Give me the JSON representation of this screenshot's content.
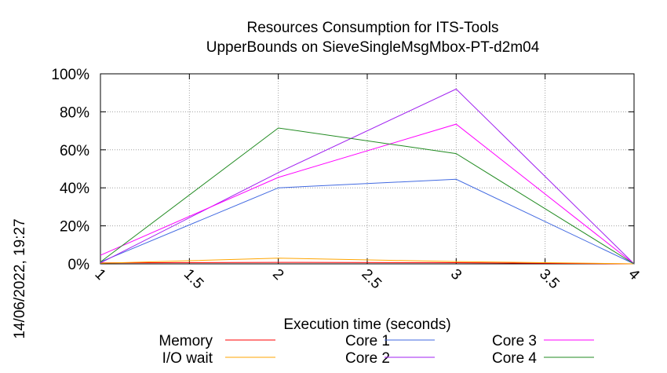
{
  "chart_data": {
    "type": "line",
    "title_line1": "Resources Consumption for ITS-Tools",
    "title_line2": "UpperBounds on SieveSingleMsgMbox-PT-d2m04",
    "xlabel": "Execution time (seconds)",
    "ylabel": "",
    "side_label": "14/06/2022, 19:27",
    "x": [
      1,
      2,
      3,
      4
    ],
    "xlim": [
      1,
      4
    ],
    "ylim": [
      0,
      100
    ],
    "x_ticks": [
      "1",
      "1.5",
      "2",
      "2.5",
      "3",
      "3.5",
      "4"
    ],
    "y_ticks": [
      "0%",
      "20%",
      "40%",
      "60%",
      "80%",
      "100%"
    ],
    "grid": true,
    "legend_position": "bottom",
    "series": [
      {
        "name": "Memory",
        "color": "#ff0000",
        "values": [
          0.5,
          0.8,
          0.6,
          0
        ]
      },
      {
        "name": "I/O wait",
        "color": "#ffa500",
        "values": [
          0.3,
          3,
          1.2,
          0
        ]
      },
      {
        "name": "Core 1",
        "color": "#4169e1",
        "values": [
          1,
          40,
          44.5,
          0
        ]
      },
      {
        "name": "Core 2",
        "color": "#a020f0",
        "values": [
          0.5,
          48,
          92,
          0
        ]
      },
      {
        "name": "Core 3",
        "color": "#ff00ff",
        "values": [
          4.5,
          45.5,
          73.5,
          0
        ]
      },
      {
        "name": "Core 4",
        "color": "#228b22",
        "values": [
          1,
          71.5,
          58,
          0
        ]
      }
    ]
  }
}
